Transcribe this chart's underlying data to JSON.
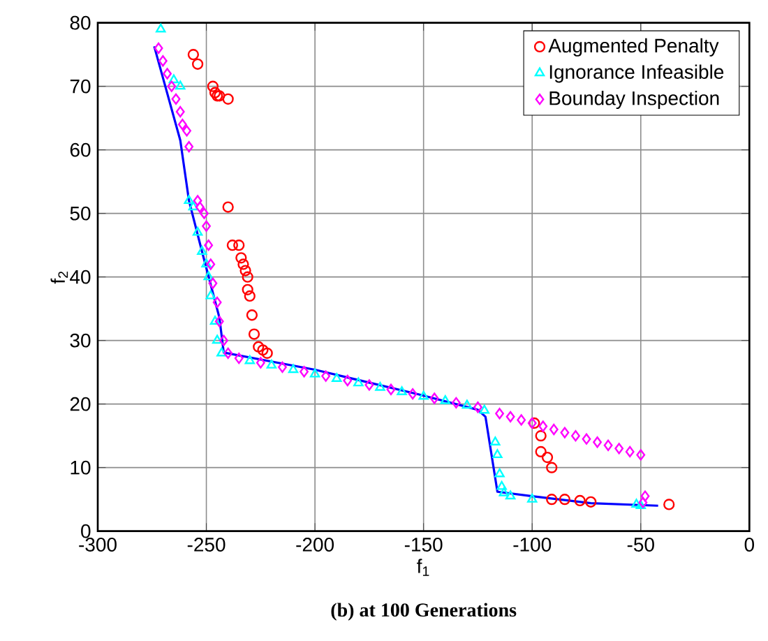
{
  "chart_data": {
    "type": "scatter",
    "xlabel": "f$_{1}$",
    "ylabel": "f$_{2}$",
    "annotations": [
      "**(b) at 100 Generations**"
    ],
    "xlim": [
      -300,
      0
    ],
    "ylim": [
      0,
      80
    ],
    "xticks": [
      -300,
      -250,
      -200,
      -150,
      -100,
      -50,
      0
    ],
    "yticks": [
      0,
      10,
      20,
      30,
      40,
      50,
      60,
      70,
      80
    ],
    "grid": true,
    "legend": "top right",
    "series": [
      {
        "name": "Augmented Penalty",
        "color": "#ff0000",
        "marker": "circle",
        "x": [
          -256,
          -254,
          -247,
          -246,
          -245,
          -244,
          -240,
          -240,
          -238,
          -235,
          -234,
          -233,
          -232,
          -231,
          -231,
          -230,
          -229,
          -228,
          -226,
          -224,
          -222,
          -99,
          -96,
          -96,
          -93,
          -91,
          -91,
          -85,
          -78,
          -73,
          -37
        ],
        "values": [
          75,
          73.5,
          70,
          69,
          68.5,
          68.5,
          68,
          51,
          45,
          45,
          43,
          42,
          41,
          40,
          38,
          37,
          34,
          31,
          29,
          28.5,
          28,
          17,
          15,
          12.5,
          11.6,
          10,
          5,
          5,
          4.8,
          4.6,
          4.2
        ]
      },
      {
        "name": "Ignorance Infeasible",
        "color": "#00ffff",
        "marker": "triangle",
        "x": [
          -271,
          -265,
          -262,
          -258,
          -256,
          -254,
          -252,
          -250,
          -249,
          -248,
          -246,
          -245,
          -243,
          -230,
          -220,
          -210,
          -200,
          -190,
          -180,
          -170,
          -160,
          -150,
          -140,
          -130,
          -122,
          -117,
          -116,
          -115,
          -114,
          -113,
          -110,
          -100,
          -52,
          -50
        ],
        "values": [
          79,
          71,
          70,
          52,
          51,
          47,
          44,
          42,
          40,
          37,
          33,
          30,
          28,
          26.8,
          26.1,
          25.4,
          24.7,
          24.0,
          23.3,
          22.6,
          21.9,
          21.2,
          20.5,
          19.8,
          19.0,
          14,
          12,
          9,
          7,
          6,
          5.5,
          5,
          4.2,
          4
        ]
      },
      {
        "name": "Bounday Inspection",
        "color": "#ff00ff",
        "marker": "diamond",
        "x": [
          -272,
          -270,
          -268,
          -266,
          -264,
          -262,
          -261,
          -259,
          -258,
          -254,
          -253,
          -251,
          -250,
          -249,
          -248,
          -247,
          -245,
          -244,
          -242,
          -240,
          -235,
          -225,
          -215,
          -205,
          -195,
          -185,
          -175,
          -165,
          -155,
          -145,
          -135,
          -125,
          -115,
          -110,
          -105,
          -100,
          -95,
          -90,
          -85,
          -80,
          -75,
          -70,
          -65,
          -60,
          -55,
          -50,
          -48,
          -49
        ],
        "values": [
          76,
          74,
          72,
          70,
          68,
          66,
          64,
          63,
          60.5,
          52,
          51,
          50,
          48,
          45,
          42,
          39,
          36,
          33,
          30,
          28,
          27.2,
          26.5,
          25.8,
          25.1,
          24.4,
          23.7,
          23.0,
          22.3,
          21.6,
          20.9,
          20.2,
          19.5,
          18.5,
          18,
          17.5,
          17,
          16.5,
          16,
          15.5,
          15,
          14.5,
          14,
          13.5,
          13,
          12.5,
          12,
          5.5,
          4.5
        ]
      },
      {
        "type": "line",
        "color": "#0000ff",
        "marker": "none",
        "x": [
          -274,
          -262,
          -258,
          -252,
          -244,
          -242,
          -200,
          -152,
          -125,
          -121.5,
          -116,
          -100,
          -73,
          -42
        ],
        "values": [
          76.3,
          61.5,
          52,
          44,
          33.6,
          28.1,
          25.4,
          21.5,
          19.1,
          18,
          6.2,
          5.5,
          4.4,
          4
        ]
      }
    ]
  }
}
